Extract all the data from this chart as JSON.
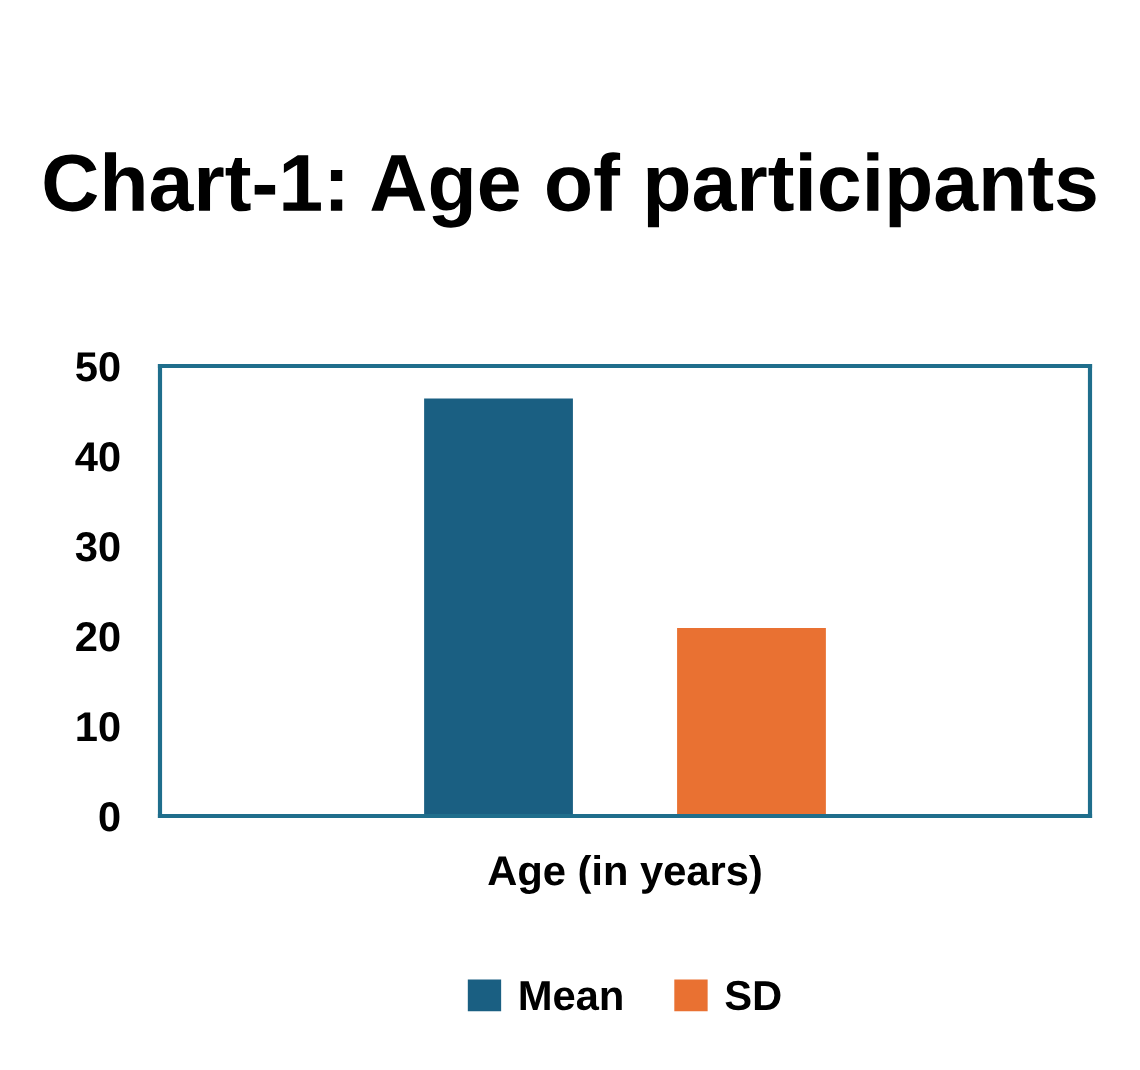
{
  "chart_data": {
    "type": "bar",
    "title": "Chart-1: Age of participants",
    "categories": [
      "Age (in years)"
    ],
    "series": [
      {
        "name": "Mean",
        "color": "#1a5f82",
        "values": [
          46.4
        ]
      },
      {
        "name": "SD",
        "color": "#e97132",
        "values": [
          20.9
        ]
      }
    ],
    "ylim": [
      0,
      50
    ],
    "yticks": [
      0,
      10,
      20,
      30,
      40,
      50
    ],
    "grid": false,
    "legend": "bottom"
  }
}
